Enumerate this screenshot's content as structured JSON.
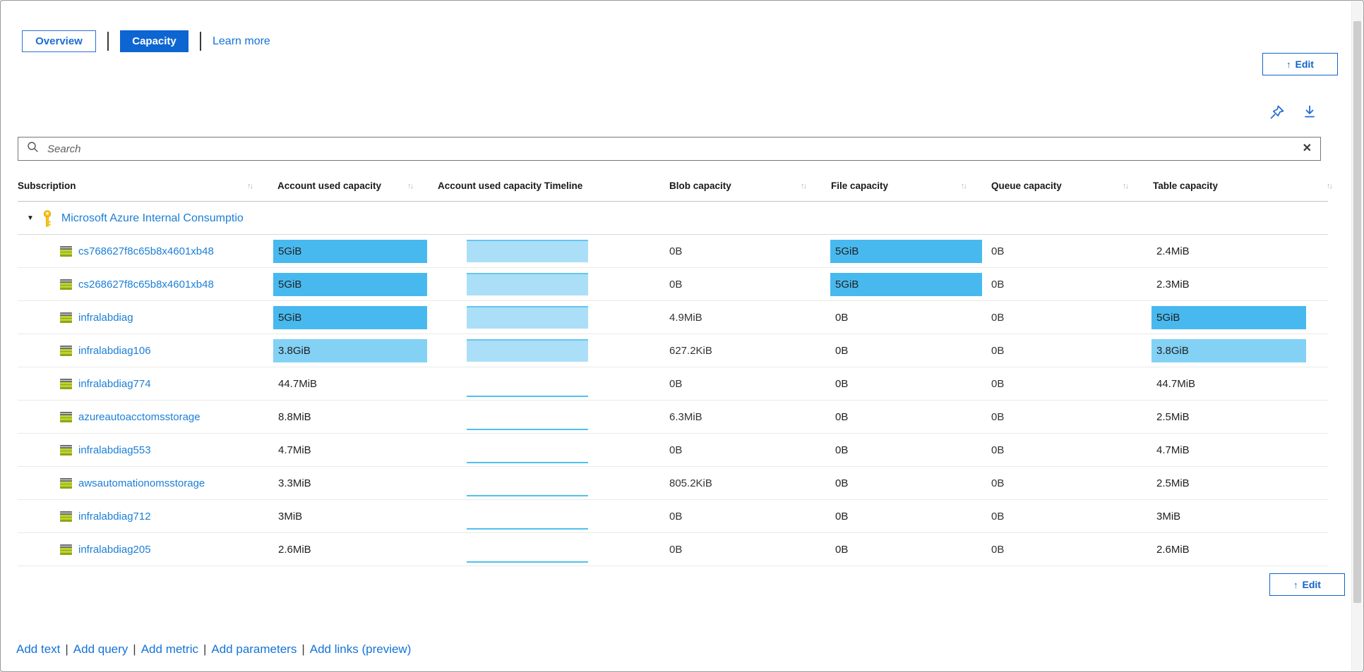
{
  "tabs": {
    "overview": "Overview",
    "capacity": "Capacity",
    "learn_more": "Learn more"
  },
  "toolbar": {
    "edit_label": "Edit",
    "edit_icon": "↑"
  },
  "search": {
    "placeholder": "Search",
    "value": ""
  },
  "table": {
    "columns": [
      {
        "label": "Subscription",
        "sortable": true
      },
      {
        "label": "Account used capacity",
        "sortable": true
      },
      {
        "label": "Account used capacity Timeline",
        "sortable": false
      },
      {
        "label": "Blob capacity",
        "sortable": true
      },
      {
        "label": "File capacity",
        "sortable": true
      },
      {
        "label": "Queue capacity",
        "sortable": true
      },
      {
        "label": "Table capacity",
        "sortable": true
      }
    ],
    "group": {
      "label": "Microsoft Azure Internal Consumptio",
      "expanded": true
    },
    "rows": [
      {
        "name": "cs768627f8c65b8x4601xb48",
        "account": "5GiB",
        "account_heat": "strong",
        "timeline": "block",
        "blob": "0B",
        "file": "5GiB",
        "file_heat": "strong",
        "queue": "0B",
        "table": "2.4MiB",
        "table_heat": "none"
      },
      {
        "name": "cs268627f8c65b8x4601xb48",
        "account": "5GiB",
        "account_heat": "strong",
        "timeline": "block",
        "blob": "0B",
        "file": "5GiB",
        "file_heat": "strong",
        "queue": "0B",
        "table": "2.3MiB",
        "table_heat": "none"
      },
      {
        "name": "infralabdiag",
        "account": "5GiB",
        "account_heat": "strong",
        "timeline": "block",
        "blob": "4.9MiB",
        "file": "0B",
        "file_heat": "none",
        "queue": "0B",
        "table": "5GiB",
        "table_heat": "strong"
      },
      {
        "name": "infralabdiag106",
        "account": "3.8GiB",
        "account_heat": "light",
        "timeline": "block",
        "blob": "627.2KiB",
        "file": "0B",
        "file_heat": "none",
        "queue": "0B",
        "table": "3.8GiB",
        "table_heat": "light"
      },
      {
        "name": "infralabdiag774",
        "account": "44.7MiB",
        "account_heat": "none",
        "timeline": "line",
        "blob": "0B",
        "file": "0B",
        "file_heat": "none",
        "queue": "0B",
        "table": "44.7MiB",
        "table_heat": "none"
      },
      {
        "name": "azureautoacctomsstorage",
        "account": "8.8MiB",
        "account_heat": "none",
        "timeline": "line",
        "blob": "6.3MiB",
        "file": "0B",
        "file_heat": "none",
        "queue": "0B",
        "table": "2.5MiB",
        "table_heat": "none"
      },
      {
        "name": "infralabdiag553",
        "account": "4.7MiB",
        "account_heat": "none",
        "timeline": "line",
        "blob": "0B",
        "file": "0B",
        "file_heat": "none",
        "queue": "0B",
        "table": "4.7MiB",
        "table_heat": "none"
      },
      {
        "name": "awsautomationomsstorage",
        "account": "3.3MiB",
        "account_heat": "none",
        "timeline": "line",
        "blob": "805.2KiB",
        "file": "0B",
        "file_heat": "none",
        "queue": "0B",
        "table": "2.5MiB",
        "table_heat": "none"
      },
      {
        "name": "infralabdiag712",
        "account": "3MiB",
        "account_heat": "none",
        "timeline": "line",
        "blob": "0B",
        "file": "0B",
        "file_heat": "none",
        "queue": "0B",
        "table": "3MiB",
        "table_heat": "none"
      },
      {
        "name": "infralabdiag205",
        "account": "2.6MiB",
        "account_heat": "none",
        "timeline": "line",
        "blob": "0B",
        "file": "0B",
        "file_heat": "none",
        "queue": "0B",
        "table": "2.6MiB",
        "table_heat": "none"
      }
    ]
  },
  "footer": {
    "links": [
      "Add text",
      "Add query",
      "Add metric",
      "Add parameters",
      "Add links (preview)"
    ]
  },
  "icons": {
    "sort": "sort-arrows-icon",
    "pin": "pin-icon",
    "download": "download-icon",
    "search": "search-icon",
    "clear": "✕",
    "caret": "▼"
  },
  "colors": {
    "heat_strong": "#48b9ee",
    "heat_light": "#83d1f4",
    "timeline_fill": "#abdff8",
    "timeline_line": "#4fc1ef",
    "button_blue": "#0d65d2",
    "link_blue": "#1b7fd6"
  }
}
